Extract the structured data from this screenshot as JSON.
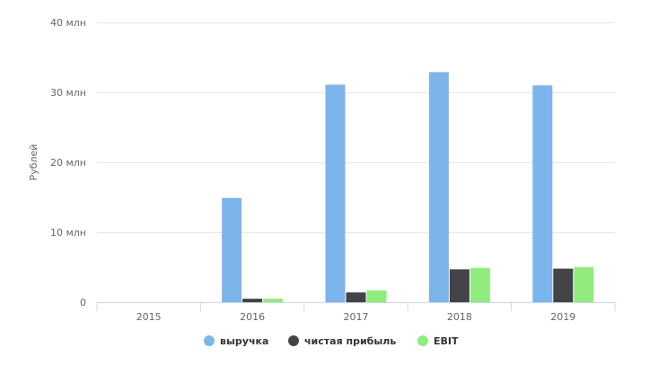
{
  "chart_data": {
    "type": "bar",
    "title": "",
    "xlabel": "",
    "ylabel": "Рублей",
    "ylim": [
      0,
      40000000
    ],
    "yticks": [
      {
        "value": 0,
        "label": "0"
      },
      {
        "value": 10000000,
        "label": "10 млн"
      },
      {
        "value": 20000000,
        "label": "20 млн"
      },
      {
        "value": 30000000,
        "label": "30 млн"
      },
      {
        "value": 40000000,
        "label": "40 млн"
      }
    ],
    "categories": [
      "2015",
      "2016",
      "2017",
      "2018",
      "2019"
    ],
    "series": [
      {
        "name": "выручка",
        "color": "#7cb5ec",
        "values": [
          0,
          14900000,
          31100000,
          32900000,
          31000000
        ]
      },
      {
        "name": "чистая прибыль",
        "color": "#434348",
        "values": [
          0,
          500000,
          1400000,
          4700000,
          4800000
        ]
      },
      {
        "name": "EBIT",
        "color": "#90ed7d",
        "values": [
          0,
          500000,
          1700000,
          4900000,
          5000000
        ]
      }
    ],
    "grid": true,
    "legend_position": "bottom-center"
  }
}
